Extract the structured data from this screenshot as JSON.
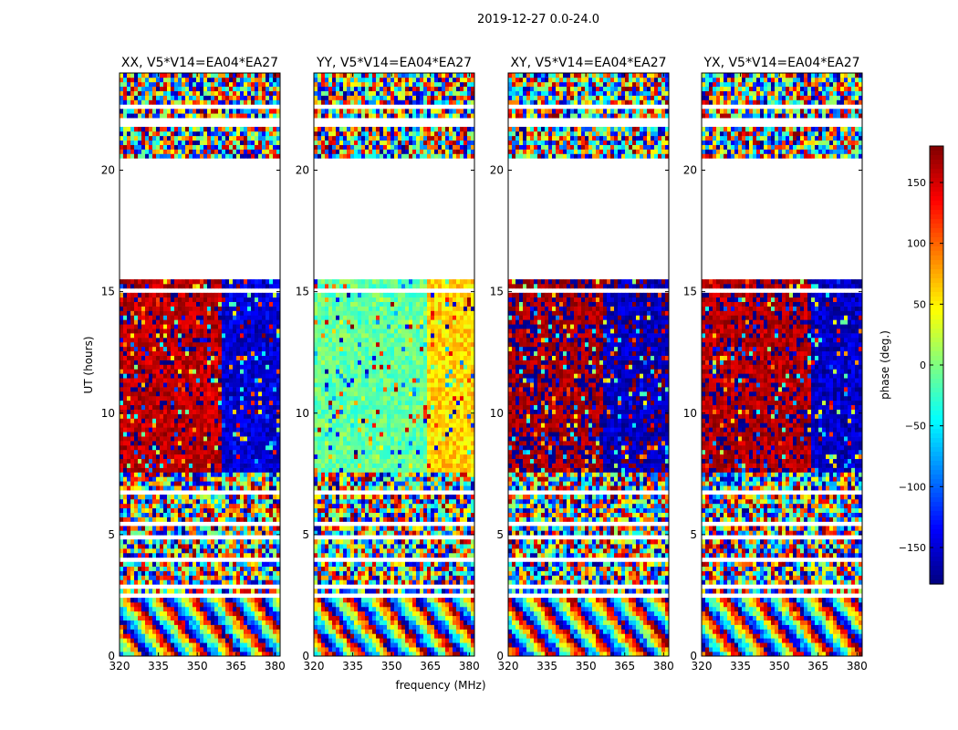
{
  "suptitle": "2019-12-27 0.0-24.0",
  "chart_data": {
    "type": "heatmap",
    "title": "2019-12-27 0.0-24.0",
    "xlabel": "frequency (MHz)",
    "ylabel": "UT (hours)",
    "xlim": [
      320,
      382
    ],
    "ylim": [
      0,
      24
    ],
    "xticks": [
      "320",
      "335",
      "350",
      "365",
      "380"
    ],
    "yticks": [
      "0",
      "5",
      "10",
      "15",
      "20"
    ],
    "colorbar": {
      "label": "phase (deg.)",
      "range": [
        -180,
        180
      ],
      "ticks": [
        "150",
        "100",
        "50",
        "0",
        "−50",
        "−100",
        "−150"
      ],
      "colormap": "jet"
    },
    "panels": [
      {
        "title": "XX, V5*V14=EA04*EA27",
        "low_band_phase_deg": 160,
        "high_band_phase_deg": -150,
        "band_edge_mhz": 360
      },
      {
        "title": "YY, V5*V14=EA04*EA27",
        "low_band_phase_deg": -10,
        "high_band_phase_deg": 60,
        "band_edge_mhz": 364
      },
      {
        "title": "XY, V5*V14=EA04*EA27",
        "low_band_phase_deg": 170,
        "high_band_phase_deg": -160,
        "band_edge_mhz": 357
      },
      {
        "title": "YX, V5*V14=EA04*EA27",
        "low_band_phase_deg": 165,
        "high_band_phase_deg": -155,
        "band_edge_mhz": 362
      }
    ],
    "flagged_ut_ranges_hours": [
      [
        15.6,
        20.5
      ],
      [
        21.7,
        22.1
      ]
    ],
    "colors": {
      "axes": "#000000",
      "background": "#ffffff"
    }
  }
}
